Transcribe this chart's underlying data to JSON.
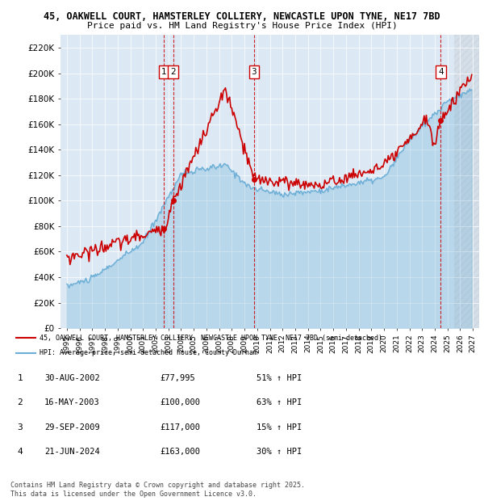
{
  "title_line1": "45, OAKWELL COURT, HAMSTERLEY COLLIERY, NEWCASTLE UPON TYNE, NE17 7BD",
  "title_line2": "Price paid vs. HM Land Registry's House Price Index (HPI)",
  "background_color": "#dce9f5",
  "sale_dates_num": [
    2002.664,
    2003.37,
    2009.747,
    2024.47
  ],
  "sale_prices": [
    77995,
    100000,
    117000,
    163000
  ],
  "sale_labels": [
    "1",
    "2",
    "3",
    "4"
  ],
  "legend_entry1": "45, OAKWELL COURT, HAMSTERLEY COLLIERY, NEWCASTLE UPON TYNE, NE17 7BD (semi-detached)",
  "legend_entry2": "HPI: Average price, semi-detached house, County Durham",
  "table_rows": [
    [
      "1",
      "30-AUG-2002",
      "£77,995",
      "51% ↑ HPI"
    ],
    [
      "2",
      "16-MAY-2003",
      "£100,000",
      "63% ↑ HPI"
    ],
    [
      "3",
      "29-SEP-2009",
      "£117,000",
      "15% ↑ HPI"
    ],
    [
      "4",
      "21-JUN-2024",
      "£163,000",
      "30% ↑ HPI"
    ]
  ],
  "footer": "Contains HM Land Registry data © Crown copyright and database right 2025.\nThis data is licensed under the Open Government Licence v3.0.",
  "hpi_color": "#6baed6",
  "price_color": "#cc0000",
  "ylim": [
    0,
    230000
  ],
  "yticks": [
    0,
    20000,
    40000,
    60000,
    80000,
    100000,
    120000,
    140000,
    160000,
    180000,
    200000,
    220000
  ],
  "xlim_min": 1994.5,
  "xlim_max": 2027.5,
  "xtick_years": [
    1995,
    1996,
    1997,
    1998,
    1999,
    2000,
    2001,
    2002,
    2003,
    2004,
    2005,
    2006,
    2007,
    2008,
    2009,
    2010,
    2011,
    2012,
    2013,
    2014,
    2015,
    2016,
    2017,
    2018,
    2019,
    2020,
    2021,
    2022,
    2023,
    2024,
    2025,
    2026,
    2027
  ],
  "hatch_start": 2025.5
}
